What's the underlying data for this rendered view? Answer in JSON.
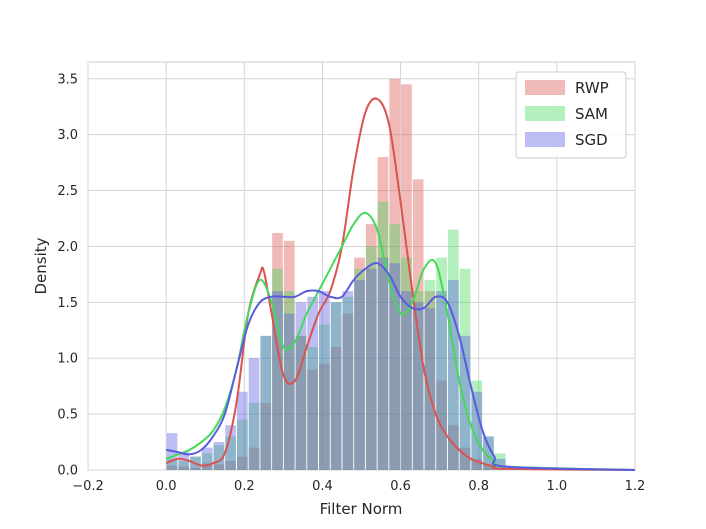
{
  "chart_data": {
    "type": "histogram",
    "xlabel": "Filter Norm",
    "ylabel": "Density",
    "xlim": [
      -0.2,
      1.2
    ],
    "ylim": [
      0.0,
      3.65
    ],
    "xticks": [
      "−0.2",
      "0.0",
      "0.2",
      "0.4",
      "0.6",
      "0.8",
      "1.0",
      "1.2"
    ],
    "xtick_values": [
      -0.2,
      0.0,
      0.2,
      0.4,
      0.6,
      0.8,
      1.0,
      1.2
    ],
    "yticks": [
      "0.0",
      "0.5",
      "1.0",
      "1.5",
      "2.0",
      "2.5",
      "3.0",
      "3.5"
    ],
    "ytick_values": [
      0.0,
      0.5,
      1.0,
      1.5,
      2.0,
      2.5,
      3.0,
      3.5
    ],
    "grid": true,
    "legend": "top-right",
    "bin_start": 0.0,
    "bin_width": 0.03,
    "series": [
      {
        "name": "RWP",
        "color": "#d9534f",
        "hist": [
          0.04,
          0.03,
          0.02,
          0.06,
          0.05,
          0.08,
          0.12,
          0.2,
          0.6,
          2.12,
          2.05,
          1.2,
          0.9,
          0.95,
          1.1,
          1.4,
          1.9,
          2.2,
          2.8,
          3.5,
          3.45,
          2.6,
          1.6,
          0.8,
          0.4,
          0.2,
          0.1,
          0.05
        ],
        "kde_x": [
          0.0,
          0.03,
          0.06,
          0.09,
          0.12,
          0.15,
          0.18,
          0.21,
          0.24,
          0.25,
          0.27,
          0.3,
          0.33,
          0.36,
          0.39,
          0.42,
          0.45,
          0.48,
          0.51,
          0.54,
          0.57,
          0.6,
          0.63,
          0.66,
          0.69,
          0.72,
          0.75,
          0.78,
          0.81,
          0.84,
          0.87,
          1.2
        ],
        "kde_y": [
          0.06,
          0.1,
          0.08,
          0.04,
          0.06,
          0.15,
          0.6,
          1.4,
          1.75,
          1.78,
          1.4,
          0.85,
          0.8,
          1.1,
          1.4,
          1.6,
          2.0,
          2.7,
          3.2,
          3.32,
          3.1,
          2.4,
          1.6,
          0.9,
          0.5,
          0.3,
          0.18,
          0.1,
          0.06,
          0.03,
          0.01,
          0.0
        ]
      },
      {
        "name": "SAM",
        "color": "#44d95a",
        "hist": [
          0.1,
          0.08,
          0.12,
          0.15,
          0.22,
          0.3,
          0.45,
          0.6,
          1.2,
          1.8,
          1.6,
          1.2,
          1.1,
          1.3,
          1.5,
          1.55,
          1.8,
          2.0,
          2.4,
          2.2,
          1.9,
          1.6,
          1.7,
          1.9,
          2.15,
          1.8,
          0.8,
          0.3,
          0.15
        ],
        "kde_x": [
          0.0,
          0.03,
          0.06,
          0.09,
          0.12,
          0.15,
          0.18,
          0.21,
          0.24,
          0.27,
          0.3,
          0.33,
          0.36,
          0.39,
          0.42,
          0.45,
          0.48,
          0.51,
          0.54,
          0.57,
          0.6,
          0.63,
          0.66,
          0.69,
          0.72,
          0.75,
          0.78,
          0.81,
          0.84,
          0.87,
          1.2
        ],
        "kde_y": [
          0.1,
          0.14,
          0.18,
          0.25,
          0.35,
          0.55,
          0.9,
          1.4,
          1.7,
          1.5,
          1.1,
          1.15,
          1.4,
          1.6,
          1.8,
          2.0,
          2.2,
          2.3,
          2.15,
          1.7,
          1.4,
          1.5,
          1.8,
          1.85,
          1.4,
          0.8,
          0.4,
          0.18,
          0.08,
          0.03,
          0.0
        ]
      },
      {
        "name": "SGD",
        "color": "#5b5be0",
        "hist": [
          0.33,
          0.16,
          0.12,
          0.2,
          0.25,
          0.4,
          0.7,
          1.0,
          1.2,
          1.6,
          1.4,
          1.5,
          1.55,
          1.6,
          1.5,
          1.6,
          1.7,
          1.8,
          1.9,
          1.85,
          1.6,
          1.5,
          1.45,
          1.6,
          1.7,
          1.2,
          0.7,
          0.3,
          0.1
        ],
        "kde_x": [
          0.0,
          0.03,
          0.06,
          0.09,
          0.12,
          0.15,
          0.18,
          0.21,
          0.24,
          0.27,
          0.3,
          0.33,
          0.36,
          0.39,
          0.42,
          0.45,
          0.48,
          0.51,
          0.54,
          0.57,
          0.6,
          0.63,
          0.66,
          0.69,
          0.72,
          0.75,
          0.78,
          0.81,
          0.84,
          0.87,
          1.2
        ],
        "kde_y": [
          0.18,
          0.16,
          0.14,
          0.18,
          0.3,
          0.5,
          0.9,
          1.3,
          1.5,
          1.55,
          1.55,
          1.55,
          1.6,
          1.6,
          1.55,
          1.55,
          1.7,
          1.8,
          1.85,
          1.75,
          1.55,
          1.45,
          1.45,
          1.55,
          1.5,
          1.2,
          0.75,
          0.35,
          0.12,
          0.03,
          0.0
        ]
      }
    ]
  }
}
